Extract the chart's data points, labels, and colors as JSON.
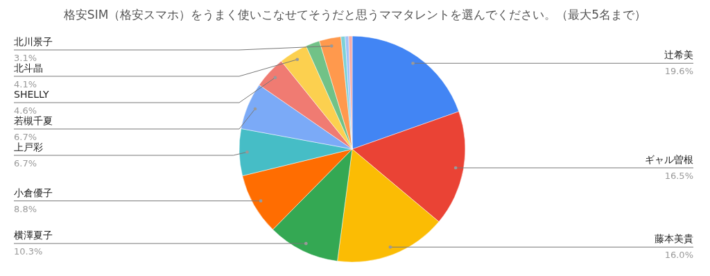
{
  "chart_data": {
    "type": "pie",
    "title": "格安SIM（格安スマホ）をうまく使いこなせてそうだと思うママタレントを選んでください。（最大5名まで）",
    "categories": [
      "辻希美",
      "ギャル曽根",
      "藤本美貴",
      "横澤夏子",
      "小倉優子",
      "上戸彩",
      "若槻千夏",
      "SHELLY",
      "北斗晶",
      null,
      "北川景子",
      null,
      null,
      null
    ],
    "values": [
      19.6,
      16.5,
      16.0,
      10.3,
      8.8,
      6.7,
      6.7,
      4.6,
      4.1,
      2.0,
      3.1,
      0.6,
      0.5,
      0.5
    ],
    "colors": [
      "#4285f4",
      "#ea4335",
      "#fbbc04",
      "#34a853",
      "#ff6d01",
      "#46bdc6",
      "#7baaf7",
      "#f07b72",
      "#fcd04f",
      "#71c287",
      "#ff994d",
      "#7ed1d7",
      "#a0c2f9",
      "#f6aea9"
    ],
    "value_labels": [
      "19.6%",
      "16.5%",
      "16.0%",
      "10.3%",
      "8.8%",
      "6.7%",
      "6.7%",
      "4.6%",
      "4.1%",
      null,
      "3.1%",
      null,
      null,
      null
    ]
  }
}
